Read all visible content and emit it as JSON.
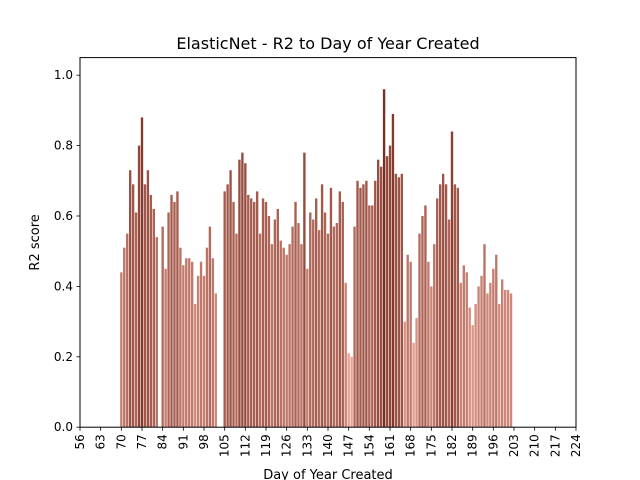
{
  "chart_data": {
    "type": "bar",
    "title": "ElasticNet - R2 to Day of Year Created",
    "xlabel": "Day of Year Created",
    "ylabel": "R2 score",
    "xlim": [
      56,
      224
    ],
    "ylim": [
      0.0,
      1.05
    ],
    "x_ticks": [
      56,
      63,
      70,
      77,
      84,
      91,
      98,
      105,
      112,
      119,
      126,
      133,
      140,
      147,
      154,
      161,
      168,
      175,
      182,
      189,
      196,
      203,
      210,
      217,
      224
    ],
    "y_ticks": [
      0.0,
      0.2,
      0.4,
      0.6,
      0.8,
      1.0
    ],
    "y_tick_labels": [
      "0.0",
      "0.2",
      "0.4",
      "0.6",
      "0.8",
      "1.0"
    ],
    "grid": false,
    "legend": "none",
    "color_low": "#e8a394",
    "color_high": "#7a2e21",
    "x": [
      70,
      71,
      72,
      73,
      74,
      75,
      76,
      77,
      78,
      79,
      80,
      81,
      82,
      84,
      85,
      86,
      87,
      88,
      89,
      90,
      91,
      92,
      93,
      94,
      95,
      96,
      97,
      98,
      99,
      100,
      101,
      102,
      105,
      106,
      107,
      108,
      109,
      110,
      111,
      112,
      113,
      114,
      115,
      116,
      117,
      118,
      119,
      120,
      121,
      122,
      123,
      124,
      125,
      126,
      127,
      128,
      129,
      130,
      131,
      132,
      133,
      134,
      135,
      136,
      137,
      138,
      139,
      140,
      141,
      142,
      143,
      144,
      145,
      146,
      147,
      148,
      149,
      150,
      151,
      152,
      153,
      154,
      155,
      156,
      157,
      158,
      159,
      160,
      161,
      162,
      163,
      164,
      165,
      166,
      167,
      168,
      169,
      170,
      171,
      172,
      173,
      174,
      175,
      176,
      177,
      178,
      179,
      180,
      181,
      182,
      183,
      184,
      185,
      186,
      187,
      188,
      189,
      190,
      191,
      192,
      193,
      194,
      195,
      196,
      197,
      198,
      199,
      200,
      201,
      202
    ],
    "values": [
      0.44,
      0.51,
      0.55,
      0.73,
      0.69,
      0.61,
      0.8,
      0.88,
      0.69,
      0.73,
      0.66,
      0.62,
      0.54,
      0.57,
      0.45,
      0.61,
      0.66,
      0.64,
      0.67,
      0.51,
      0.46,
      0.48,
      0.48,
      0.47,
      0.35,
      0.43,
      0.47,
      0.43,
      0.51,
      0.57,
      0.48,
      0.38,
      0.67,
      0.69,
      0.73,
      0.64,
      0.55,
      0.76,
      0.78,
      0.75,
      0.66,
      0.65,
      0.64,
      0.67,
      0.55,
      0.65,
      0.64,
      0.6,
      0.52,
      0.59,
      0.62,
      0.53,
      0.51,
      0.49,
      0.52,
      0.57,
      0.64,
      0.58,
      0.52,
      0.78,
      0.45,
      0.61,
      0.59,
      0.65,
      0.56,
      0.69,
      0.61,
      0.55,
      0.68,
      0.57,
      0.58,
      0.67,
      0.64,
      0.41,
      0.21,
      0.2,
      0.57,
      0.7,
      0.68,
      0.69,
      0.7,
      0.63,
      0.63,
      0.7,
      0.76,
      0.74,
      0.96,
      0.77,
      0.8,
      0.89,
      0.72,
      0.71,
      0.72,
      0.3,
      0.49,
      0.47,
      0.24,
      0.31,
      0.55,
      0.6,
      0.63,
      0.47,
      0.4,
      0.52,
      0.65,
      0.69,
      0.72,
      0.69,
      0.59,
      0.84,
      0.69,
      0.68,
      0.41,
      0.46,
      0.44,
      0.34,
      0.29,
      0.35,
      0.4,
      0.43,
      0.52,
      0.38,
      0.41,
      0.45,
      0.49,
      0.35,
      0.42,
      0.39,
      0.39,
      0.38
    ]
  }
}
